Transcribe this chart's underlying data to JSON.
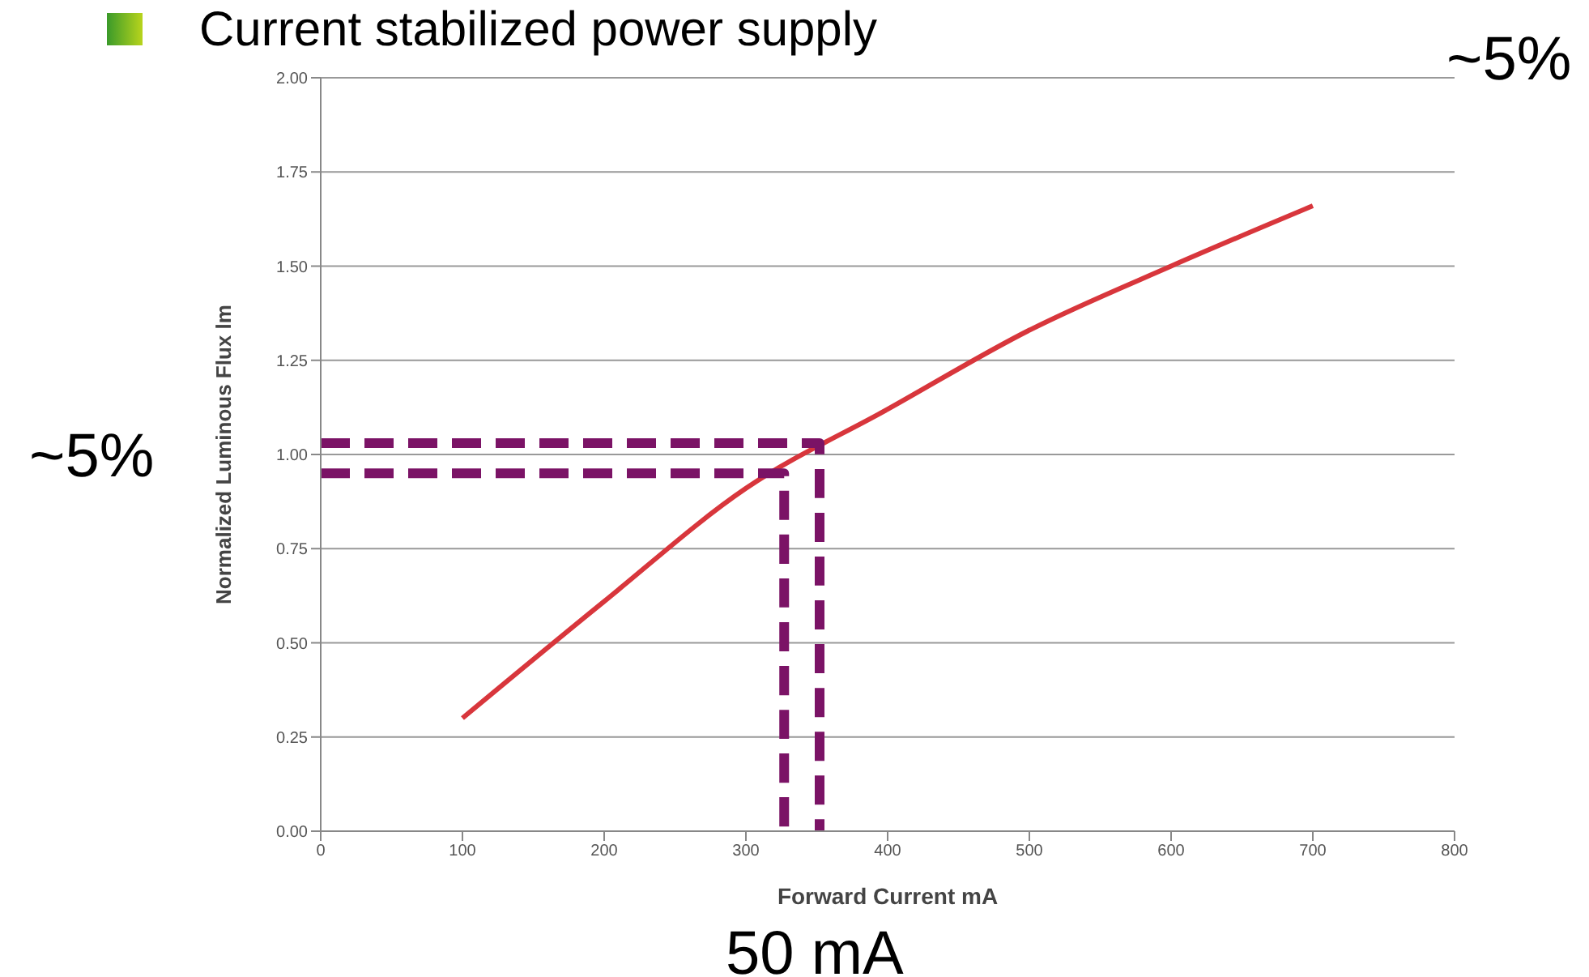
{
  "chart_data": {
    "type": "line",
    "title": "Current stabilized power supply",
    "xlabel": "Forward Current mA",
    "ylabel": "Normalized Luminous Flux lm",
    "series": [
      {
        "color": "#d8363c",
        "x": [
          100,
          200,
          300,
          400,
          500,
          600,
          700
        ],
        "values": [
          0.3,
          0.61,
          0.91,
          1.12,
          1.33,
          1.5,
          1.66
        ]
      },
      {
        "color": "#7b1366",
        "line_style": "dashed",
        "x": [
          0,
          352,
          352
        ],
        "values": [
          1.03,
          1.03,
          0
        ]
      },
      {
        "color": "#7b1366",
        "line_style": "dashed",
        "x": [
          0,
          327,
          327
        ],
        "values": [
          0.95,
          0.95,
          0
        ]
      }
    ],
    "xlim": [
      0,
      800
    ],
    "xticks": [
      0,
      100,
      200,
      300,
      400,
      500,
      600,
      700,
      800
    ],
    "ylim": [
      0,
      2
    ],
    "yticks": [
      {
        "value": 0,
        "label": "0.00"
      },
      {
        "value": 0.25,
        "label": "0.25"
      },
      {
        "value": 0.5,
        "label": "0.50"
      },
      {
        "value": 0.75,
        "label": "0.75"
      },
      {
        "value": 1,
        "label": "1.00"
      },
      {
        "value": 1.25,
        "label": "1.25"
      },
      {
        "value": 1.5,
        "label": "1.50"
      },
      {
        "value": 1.75,
        "label": "1.75"
      },
      {
        "value": 2,
        "label": "2.00"
      }
    ],
    "grid": "y",
    "legend": false,
    "marker": "none",
    "annotations": [
      "~5%",
      "~5%",
      "50 mA"
    ]
  }
}
